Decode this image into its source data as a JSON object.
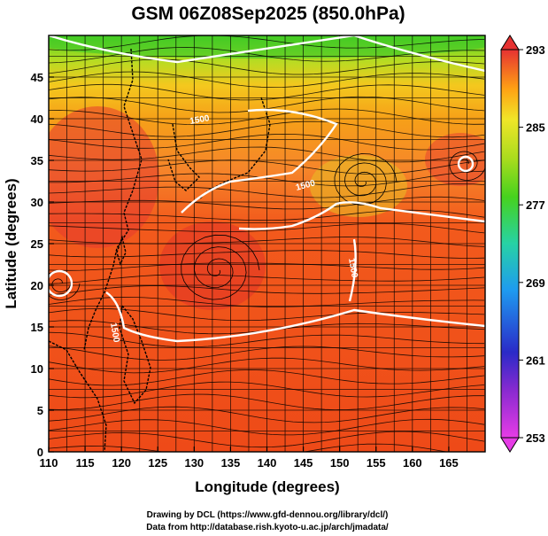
{
  "title": "GSM 06Z08Sep2025 (850.0hPa)",
  "x_axis": {
    "label": "Longitude (degrees)",
    "ticks": [
      "110",
      "115",
      "120",
      "125",
      "130",
      "135",
      "140",
      "145",
      "150",
      "155",
      "160",
      "165"
    ]
  },
  "y_axis": {
    "label": "Latitude (degrees)",
    "ticks": [
      "0",
      "5",
      "10",
      "15",
      "20",
      "25",
      "30",
      "35",
      "40",
      "45"
    ]
  },
  "colorbar": {
    "ticks": [
      "253",
      "261",
      "269",
      "277",
      "285",
      "293"
    ],
    "colors": [
      "#e63ce6",
      "#2a2ac8",
      "#1e9bf0",
      "#27d2a5",
      "#46d21e",
      "#aadc1e",
      "#f0e628",
      "#ffa014",
      "#ff5a14",
      "#e63232"
    ]
  },
  "contour_labels": [
    "1500",
    "1500",
    "1500",
    "1500"
  ],
  "credits": {
    "line1": "Drawing by DCL (https://www.gfd-dennou.org/library/dcl/)",
    "line2": "Data from http://database.rish.kyoto-u.ac.jp/arch/jmadata/"
  }
}
